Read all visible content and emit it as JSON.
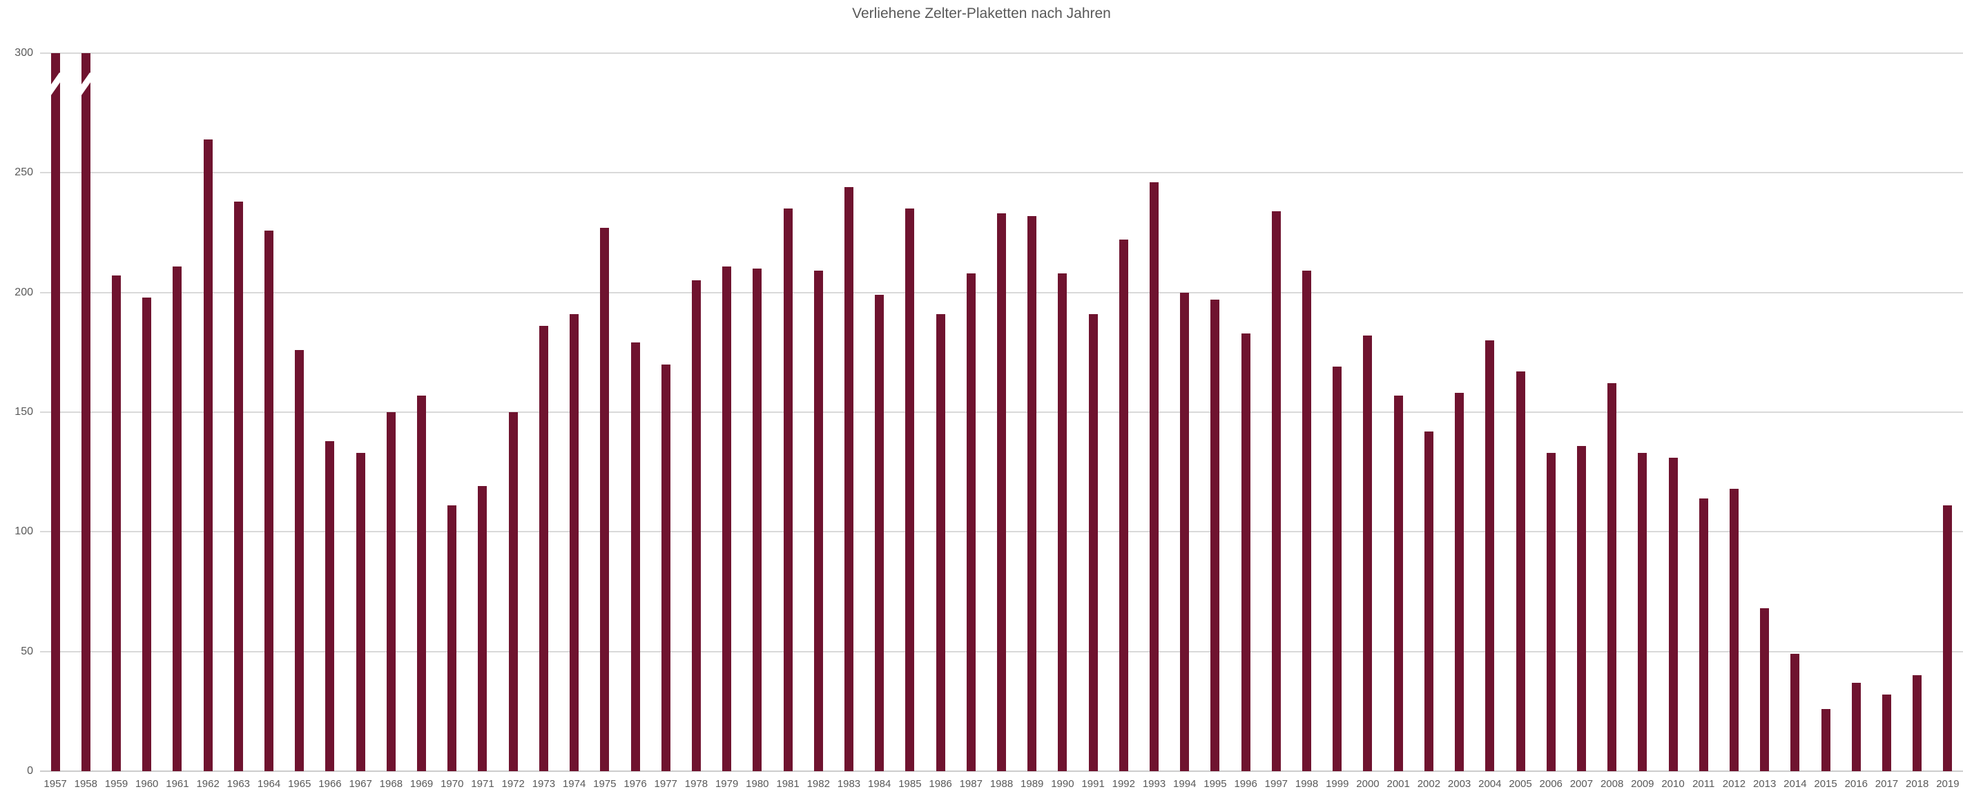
{
  "title": "Verliehene Zelter-Plaketten nach Jahren",
  "colors": {
    "bar": "#6f132f",
    "gridline": "#d9d9d9",
    "baseline": "#cccccc",
    "axis_text": "#595959",
    "title_text": "#595959",
    "background": "#ffffff",
    "break_mark": "#ffffff"
  },
  "y_axis": {
    "ticks": [
      0,
      50,
      100,
      150,
      200,
      250,
      300
    ],
    "max": 300
  },
  "chart_data": {
    "type": "bar",
    "title": "Verliehene Zelter-Plaketten nach Jahren",
    "xlabel": "",
    "ylabel": "",
    "ylim": [
      0,
      300
    ],
    "grid": "horizontal",
    "legend": "none",
    "categories": [
      1957,
      1958,
      1959,
      1960,
      1961,
      1962,
      1963,
      1964,
      1965,
      1966,
      1967,
      1968,
      1969,
      1970,
      1971,
      1972,
      1973,
      1974,
      1975,
      1976,
      1977,
      1978,
      1979,
      1980,
      1981,
      1982,
      1983,
      1984,
      1985,
      1986,
      1987,
      1988,
      1989,
      1990,
      1991,
      1992,
      1993,
      1994,
      1995,
      1996,
      1997,
      1998,
      1999,
      2000,
      2001,
      2002,
      2003,
      2004,
      2005,
      2006,
      2007,
      2008,
      2009,
      2010,
      2011,
      2012,
      2013,
      2014,
      2015,
      2016,
      2017,
      2018,
      2019
    ],
    "values": [
      300,
      300,
      207,
      198,
      211,
      264,
      238,
      226,
      176,
      138,
      133,
      150,
      157,
      111,
      119,
      150,
      186,
      191,
      227,
      179,
      170,
      205,
      211,
      210,
      235,
      209,
      244,
      199,
      235,
      191,
      208,
      233,
      232,
      208,
      191,
      222,
      246,
      200,
      197,
      183,
      234,
      209,
      169,
      182,
      157,
      142,
      158,
      180,
      167,
      133,
      136,
      162,
      133,
      131,
      114,
      118,
      68,
      49,
      26,
      37,
      32,
      40,
      111
    ],
    "truncated_years": [
      1957,
      1958
    ],
    "truncated_note": "Bars for 1957 and 1958 exceed the y-axis maximum of 300 and are drawn clipped at 300 with a white diagonal axis-break mark"
  }
}
